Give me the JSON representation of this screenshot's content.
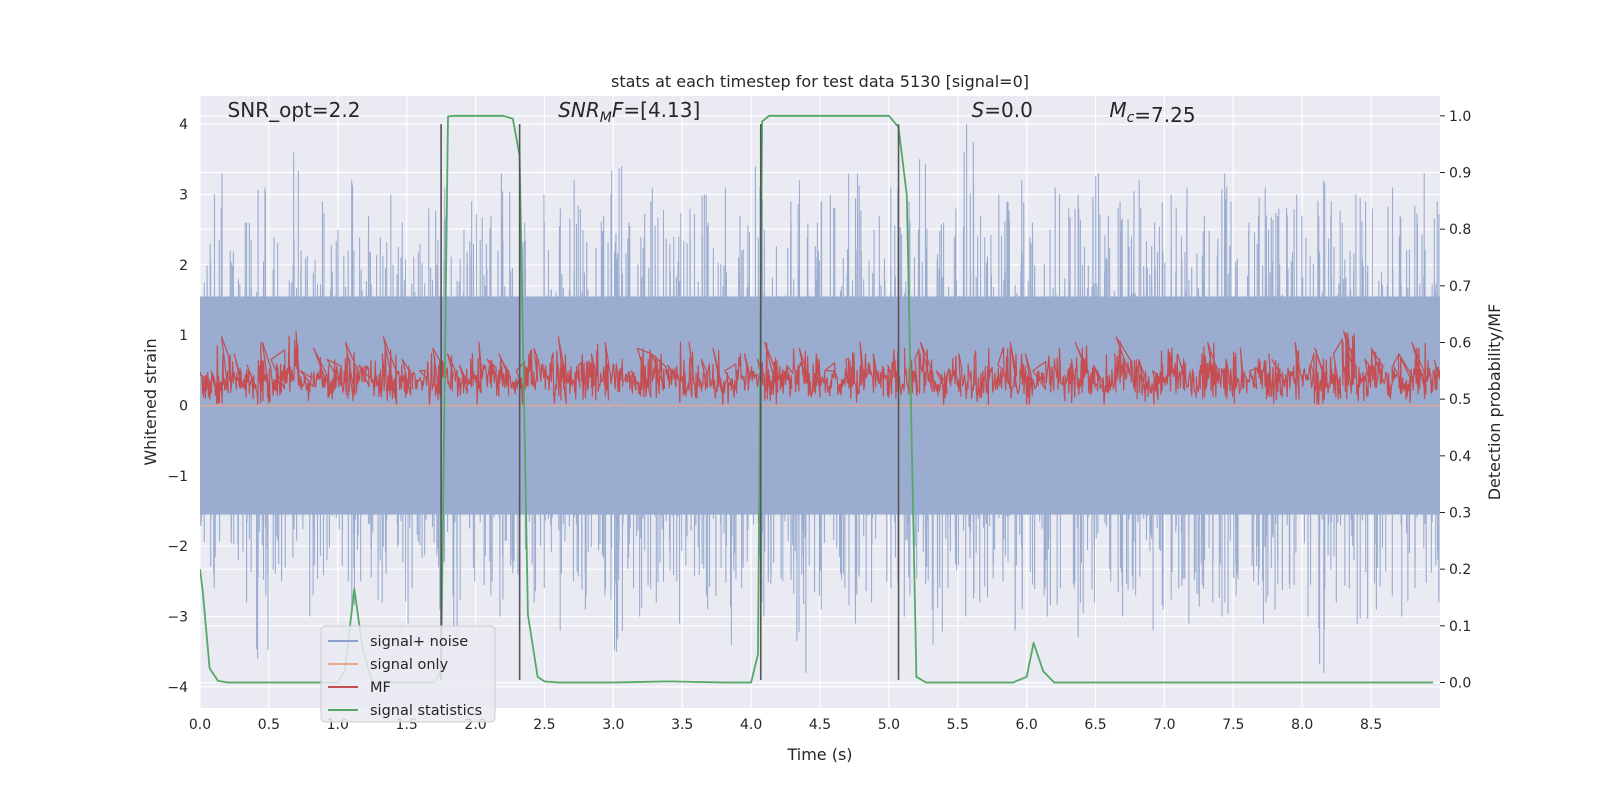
{
  "chart_data": {
    "type": "line",
    "title": "stats at each timestep for test data 5130 [signal=0]",
    "xlabel": "Time (s)",
    "ylabel": "Whitened strain",
    "y2label": "Detection probability/MF",
    "xlim": [
      0.0,
      9.0
    ],
    "ylim": [
      -4.3,
      4.4
    ],
    "y2lim": [
      -0.045,
      1.035
    ],
    "xticks": [
      0.0,
      0.5,
      1.0,
      1.5,
      2.0,
      2.5,
      3.0,
      3.5,
      4.0,
      4.5,
      5.0,
      5.5,
      6.0,
      6.5,
      7.0,
      7.5,
      8.0,
      8.5
    ],
    "xtick_labels": [
      "0.0",
      "0.5",
      "1.0",
      "1.5",
      "2.0",
      "2.5",
      "3.0",
      "3.5",
      "4.0",
      "4.5",
      "5.0",
      "5.5",
      "6.0",
      "6.5",
      "7.0",
      "7.5",
      "8.0",
      "8.5"
    ],
    "yticks": [
      4,
      3,
      2,
      1,
      0,
      -1,
      -2,
      -3,
      -4
    ],
    "ytick_labels": [
      "4",
      "3",
      "2",
      "1",
      "0",
      "−1",
      "−2",
      "−3",
      "−4"
    ],
    "y2ticks": [
      1.0,
      0.9,
      0.8,
      0.7,
      0.6,
      0.5,
      0.4,
      0.3,
      0.2,
      0.1,
      0.0
    ],
    "y2tick_labels": [
      "1.0",
      "0.9",
      "0.8",
      "0.7",
      "0.6",
      "0.5",
      "0.4",
      "0.3",
      "0.2",
      "0.1",
      "0.0"
    ],
    "grid": true,
    "legend_position": "lower-left",
    "annotations": [
      {
        "label": "SNR_opt=2.2",
        "x": 0.2,
        "y": 4.1
      },
      {
        "label": "SNR",
        "sub": "M",
        "suffix": "F=[4.13]",
        "x": 2.6,
        "y": 4.1
      },
      {
        "label": "S",
        "suffix": "=0.0",
        "x": 5.6,
        "y": 4.1
      },
      {
        "label": "M",
        "sub": "c",
        "suffix": "=7.25",
        "x": 6.6,
        "y": 4.1
      }
    ],
    "vlines": {
      "x": [
        1.75,
        2.32,
        4.07,
        5.07
      ],
      "ymin": -3.9,
      "ymax": 4.0,
      "color": "#555555"
    },
    "series": [
      {
        "name": "signal+ noise",
        "color": "#8da0cb",
        "axis": "left",
        "style": "noise",
        "band_upper": [
          2.3,
          3.3,
          2.2,
          2.6,
          3.1,
          2.4,
          3.6,
          2.2,
          2.9,
          2.5,
          3.2,
          2.7,
          2.4,
          3.0,
          2.6,
          2.3,
          2.8,
          3.1,
          2.5,
          2.9,
          2.7,
          3.3,
          2.4,
          2.6,
          3.0,
          2.8,
          3.2,
          2.5,
          2.7,
          3.4,
          2.6,
          2.9,
          3.1,
          2.4,
          2.8,
          3.0,
          2.6,
          3.1,
          2.7,
          3.4,
          2.5,
          2.9,
          3.2,
          2.6,
          3.0,
          2.8,
          3.3,
          2.5,
          2.7,
          3.1,
          2.9,
          3.5,
          2.6,
          2.8,
          4.0,
          2.7,
          3.0,
          2.9,
          3.2,
          2.6,
          3.1,
          2.8,
          3.0,
          3.3,
          2.7,
          2.9,
          3.2,
          2.6,
          3.0,
          2.8,
          3.1,
          2.7,
          3.3,
          2.9,
          2.6,
          3.1,
          2.8,
          3.0,
          2.7,
          3.2,
          2.9,
          2.6,
          3.0,
          2.8,
          3.1,
          2.7,
          3.3,
          2.9
        ],
        "band_lower": [
          -2.4,
          -2.6,
          -2.2,
          -2.8,
          -3.6,
          -2.5,
          -2.3,
          -3.0,
          -2.7,
          -2.2,
          -2.9,
          -2.5,
          -2.8,
          -2.4,
          -3.1,
          -2.6,
          -2.3,
          -2.9,
          -3.3,
          -2.5,
          -2.7,
          -3.0,
          -2.4,
          -2.8,
          -2.6,
          -3.2,
          -2.5,
          -2.9,
          -2.7,
          -3.5,
          -2.6,
          -3.0,
          -2.8,
          -2.5,
          -3.1,
          -2.7,
          -2.9,
          -3.4,
          -2.6,
          -2.8,
          -3.0,
          -2.5,
          -3.8,
          -2.7,
          -2.9,
          -2.6,
          -3.1,
          -2.8,
          -2.5,
          -3.0,
          -2.7,
          -2.9,
          -3.4,
          -2.6,
          -3.0,
          -2.8,
          -2.5,
          -3.2,
          -2.9,
          -2.7,
          -3.0,
          -2.6,
          -3.3,
          -2.8,
          -2.5,
          -3.0,
          -2.7,
          -3.2,
          -2.9,
          -2.6,
          -3.1,
          -2.8,
          -3.0,
          -2.7,
          -2.5,
          -3.1,
          -2.9,
          -2.6,
          -3.0,
          -3.8,
          -2.8,
          -2.6,
          -3.1,
          -2.9,
          -2.7,
          -3.0,
          -2.6,
          -2.8
        ]
      },
      {
        "name": "signal only",
        "color": "#e8a68c",
        "axis": "left",
        "style": "line",
        "x": [
          0.0,
          9.0
        ],
        "y": [
          0.0,
          0.0
        ]
      },
      {
        "name": "MF",
        "color": "#c44e52",
        "axis": "right",
        "style": "noise",
        "band_upper": [
          0.55,
          0.61,
          0.58,
          0.56,
          0.6,
          0.57,
          0.62,
          0.55,
          0.59,
          0.57,
          0.6,
          0.56,
          0.58,
          0.61,
          0.57,
          0.55,
          0.59,
          0.58,
          0.56,
          0.6,
          0.57,
          0.58,
          0.55,
          0.59,
          0.57,
          0.61,
          0.56,
          0.58,
          0.6,
          0.57,
          0.55,
          0.59,
          0.58,
          0.56,
          0.6,
          0.57,
          0.59,
          0.55,
          0.58,
          0.57,
          0.6,
          0.56,
          0.59,
          0.58,
          0.55,
          0.57,
          0.6,
          0.58,
          0.56,
          0.59,
          0.57,
          0.6,
          0.55,
          0.58,
          0.57,
          0.59,
          0.56,
          0.6,
          0.58,
          0.55,
          0.59,
          0.57,
          0.6,
          0.56,
          0.58,
          0.61,
          0.57,
          0.55,
          0.59,
          0.58,
          0.56,
          0.6,
          0.57,
          0.59,
          0.55,
          0.58,
          0.57,
          0.6,
          0.56,
          0.59,
          0.58,
          0.62,
          0.57,
          0.59,
          0.56,
          0.58,
          0.6,
          0.57
        ],
        "band_lower": [
          0.5,
          0.49,
          0.51,
          0.5,
          0.49,
          0.5,
          0.51,
          0.49,
          0.5,
          0.5,
          0.49,
          0.51,
          0.5,
          0.49,
          0.5,
          0.51,
          0.49,
          0.5,
          0.5,
          0.49,
          0.51,
          0.5,
          0.49,
          0.5,
          0.51,
          0.49,
          0.5,
          0.5,
          0.49,
          0.51,
          0.5,
          0.49,
          0.5,
          0.51,
          0.49,
          0.5,
          0.5,
          0.49,
          0.51,
          0.5,
          0.49,
          0.5,
          0.51,
          0.49,
          0.5,
          0.5,
          0.49,
          0.51,
          0.5,
          0.49,
          0.5,
          0.51,
          0.49,
          0.5,
          0.5,
          0.49,
          0.51,
          0.5,
          0.49,
          0.5,
          0.51,
          0.49,
          0.5,
          0.5,
          0.49,
          0.51,
          0.5,
          0.49,
          0.5,
          0.51,
          0.49,
          0.5,
          0.5,
          0.49,
          0.51,
          0.5,
          0.49,
          0.5,
          0.51,
          0.49,
          0.5,
          0.5,
          0.49,
          0.51,
          0.5,
          0.49,
          0.5,
          0.51
        ]
      },
      {
        "name": "signal statistics",
        "color": "#55a868",
        "axis": "right",
        "style": "line",
        "x": [
          0.0,
          0.02,
          0.07,
          0.13,
          0.2,
          1.0,
          1.05,
          1.12,
          1.18,
          1.25,
          1.7,
          1.75,
          1.8,
          1.85,
          2.0,
          2.2,
          2.27,
          2.32,
          2.38,
          2.45,
          2.5,
          2.6,
          3.0,
          3.4,
          3.8,
          4.0,
          4.05,
          4.08,
          4.13,
          4.2,
          4.5,
          5.0,
          5.07,
          5.13,
          5.2,
          5.27,
          5.35,
          5.9,
          6.0,
          6.05,
          6.12,
          6.2,
          6.5,
          7.0,
          8.0,
          8.95
        ],
        "y": [
          0.2,
          0.16,
          0.025,
          0.003,
          0.0,
          0.0,
          0.02,
          0.165,
          0.06,
          0.0,
          0.0,
          0.02,
          0.999,
          1.0,
          1.0,
          1.0,
          0.995,
          0.93,
          0.12,
          0.01,
          0.002,
          0.0,
          0.0,
          0.002,
          0.0,
          0.0,
          0.05,
          0.99,
          1.0,
          1.0,
          1.0,
          1.0,
          0.98,
          0.86,
          0.01,
          0.0,
          0.0,
          0.0,
          0.01,
          0.07,
          0.02,
          0.0,
          0.0,
          0.0,
          0.0,
          0.0
        ]
      }
    ]
  }
}
